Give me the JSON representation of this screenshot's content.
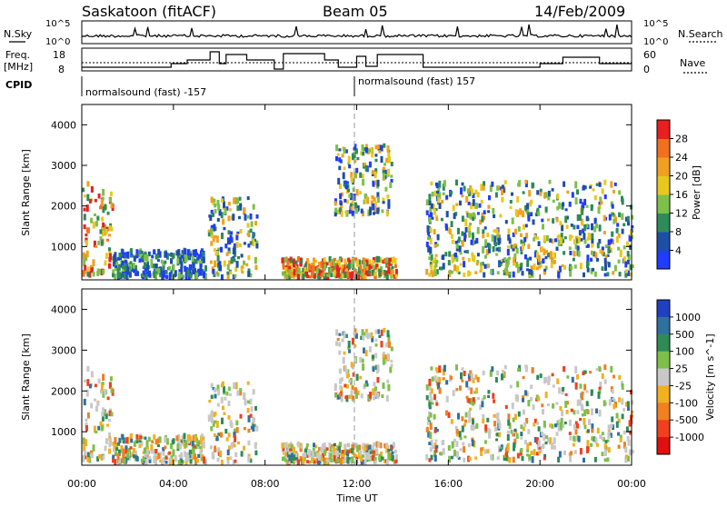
{
  "header": {
    "station": "Saskatoon (fitACF)",
    "beam": "Beam 05",
    "date": "14/Feb/2009"
  },
  "strips": {
    "nsky_label": "N.Sky",
    "nsky_ticks": [
      "10^5",
      "10^0"
    ],
    "nsearch_label": "N.Search",
    "nsearch_ticks": [
      "10^5",
      "10^0"
    ],
    "freq_label_line1": "Freq.",
    "freq_label_line2": "[MHz]",
    "freq_ticks": [
      "18",
      "8"
    ],
    "nave_label": "Nave",
    "nave_ticks": [
      "60",
      "0"
    ],
    "cpid_label": "CPID",
    "cpid_segments": [
      {
        "label": "normalsound (fast) -157",
        "start_hour": 0,
        "end_hour": 12
      },
      {
        "label": "normalsound (fast) 157",
        "start_hour": 12,
        "end_hour": 24
      }
    ]
  },
  "chart_data": [
    {
      "type": "heatmap",
      "title": "",
      "xlabel": "Time UT",
      "ylabel": "Slant Range [km]",
      "x_ticks": [
        "00:00",
        "04:00",
        "08:00",
        "12:00",
        "16:00",
        "20:00",
        "00:00"
      ],
      "xlim_hours": [
        0,
        24
      ],
      "ylim": [
        180,
        4500
      ],
      "y_ticks": [
        1000,
        2000,
        3000,
        4000
      ],
      "colorbar": {
        "label": "Power [dB]",
        "ticks": [
          "4",
          "8",
          "12",
          "16",
          "20",
          "24",
          "28"
        ],
        "colors": [
          "#1f3cff",
          "#1e4fa8",
          "#2e8b57",
          "#7cc04a",
          "#e8c81e",
          "#f0a020",
          "#f07020",
          "#e82020"
        ]
      },
      "scatter_regions": [
        {
          "t0": 0.0,
          "t1": 1.3,
          "r0": 300,
          "r1": 2600,
          "value": "high"
        },
        {
          "t0": 1.3,
          "t1": 5.4,
          "r0": 250,
          "r1": 900,
          "value": "low"
        },
        {
          "t0": 5.5,
          "t1": 7.6,
          "r0": 250,
          "r1": 2200,
          "value": "mid"
        },
        {
          "t0": 8.7,
          "t1": 13.7,
          "r0": 250,
          "r1": 700,
          "value": "high"
        },
        {
          "t0": 11.0,
          "t1": 13.5,
          "r0": 1800,
          "r1": 3500,
          "value": "mid"
        },
        {
          "t0": 15.0,
          "t1": 24.0,
          "r0": 300,
          "r1": 2600,
          "value": "mid"
        }
      ]
    },
    {
      "type": "heatmap",
      "title": "",
      "xlabel": "Time UT",
      "ylabel": "Slant Range [km]",
      "x_ticks": [
        "00:00",
        "04:00",
        "08:00",
        "12:00",
        "16:00",
        "20:00",
        "00:00"
      ],
      "xlim_hours": [
        0,
        24
      ],
      "ylim": [
        180,
        4500
      ],
      "y_ticks": [
        1000,
        2000,
        3000,
        4000
      ],
      "colorbar": {
        "label": "Velocity [m s^-1]",
        "ticks": [
          "1000",
          "500",
          "100",
          "25",
          "-25",
          "-100",
          "-500",
          "-1000"
        ],
        "colors": [
          "#2040c0",
          "#3070a0",
          "#2e8b57",
          "#7cc04a",
          "#c8c8c8",
          "#f0b020",
          "#f08020",
          "#f04020",
          "#e01010"
        ]
      }
    }
  ]
}
